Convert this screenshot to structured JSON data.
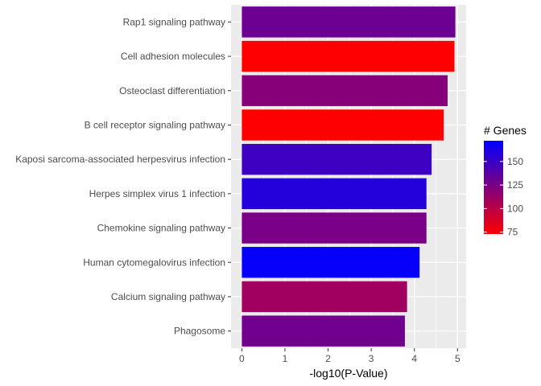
{
  "chart_data": {
    "type": "bar",
    "orientation": "horizontal",
    "categories": [
      "Rap1 signaling pathway",
      "Cell adhesion molecules",
      "Osteoclast differentiation",
      "B cell receptor signaling pathway",
      "Kaposi sarcoma-associated herpesvirus infection",
      "Herpes simplex virus 1 infection",
      "Chemokine signaling pathway",
      "Human cytomegalovirus infection",
      "Calcium signaling pathway",
      "Phagosome"
    ],
    "values": [
      4.95,
      4.93,
      4.77,
      4.68,
      4.4,
      4.28,
      4.28,
      4.12,
      3.83,
      3.78
    ],
    "gene_counts": [
      130,
      73,
      120,
      73,
      148,
      158,
      125,
      170,
      110,
      128
    ],
    "xlabel": "-log10(P-Value)",
    "ylabel": "",
    "xlim": [
      -0.25,
      5.2
    ],
    "xticks": [
      0,
      1,
      2,
      3,
      4,
      5
    ],
    "grid": true,
    "legend": {
      "title": "# Genes",
      "position": "right",
      "colorbar_range": [
        73,
        172
      ],
      "ticks": [
        75,
        100,
        125,
        150
      ],
      "low_color": "#FF0000",
      "high_color": "#0000FF"
    },
    "panel_color": "#EBEBEB",
    "gridline_color": "#FFFFFF"
  }
}
